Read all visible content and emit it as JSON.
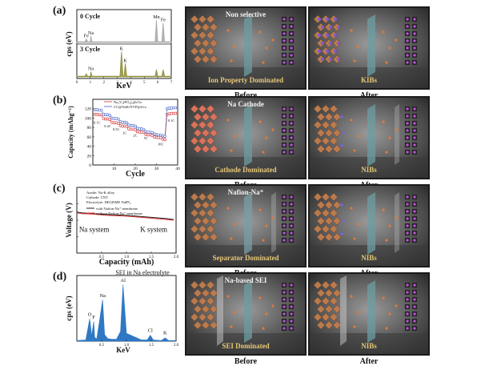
{
  "figure": {
    "rows": [
      {
        "label": "(a)",
        "chart_title": "",
        "panel_mid": {
          "title": "Non selective",
          "caption": "Ion Property Dominated",
          "state": "Before"
        },
        "panel_right": {
          "title": "",
          "caption": "KIBs",
          "state": "After"
        }
      },
      {
        "label": "(b)",
        "chart_title": "",
        "panel_mid": {
          "title": "Na Cathode",
          "caption": "Cathode Dominated",
          "state": "Before"
        },
        "panel_right": {
          "title": "",
          "caption": "NIBs",
          "state": "After"
        }
      },
      {
        "label": "(c)",
        "chart_title": "",
        "panel_mid": {
          "title": "Nafion-Na⁺",
          "caption": "Separator Dominated",
          "state": "Before"
        },
        "panel_right": {
          "title": "",
          "caption": "NIBs",
          "state": "After"
        }
      },
      {
        "label": "(d)",
        "chart_title": "SEI in Na electrolyte",
        "panel_mid": {
          "title": "Na-based SEI",
          "caption": "SEI Dominated",
          "state": "Before"
        },
        "panel_right": {
          "title": "",
          "caption": "NIBs",
          "state": "After"
        }
      }
    ]
  },
  "chart_data": [
    {
      "type": "line",
      "title": "",
      "xlabel": "KeV",
      "ylabel": "cps (eV)",
      "ylim": [
        0,
        2
      ],
      "series": [
        {
          "name": "0 Cycle",
          "color": "#a7a7a7",
          "x": [
            0,
            0.6,
            0.7,
            0.8,
            1.0,
            1.04,
            1.12,
            2.0,
            5.8,
            5.9,
            6.0,
            6.3,
            6.4,
            6.5,
            7.0
          ],
          "values": [
            0.05,
            0.05,
            0.25,
            0.05,
            0.05,
            0.45,
            0.05,
            0.05,
            0.05,
            1.6,
            0.05,
            0.05,
            1.4,
            0.05,
            0.05
          ]
        },
        {
          "name": "3 Cycle",
          "color": "#8f8f3a",
          "x": [
            0,
            0.6,
            0.7,
            0.8,
            1.0,
            1.04,
            1.12,
            2.0,
            3.2,
            3.31,
            3.42,
            3.5,
            3.59,
            3.7,
            5.8,
            5.9,
            6.0,
            6.3,
            6.4,
            6.5,
            7.0
          ],
          "values": [
            0.05,
            0.05,
            0.2,
            0.05,
            0.05,
            0.35,
            0.05,
            0.05,
            0.05,
            1.7,
            0.05,
            0.05,
            0.9,
            0.05,
            0.05,
            0.5,
            0.05,
            0.05,
            0.5,
            0.05,
            0.05
          ]
        }
      ],
      "annotations": [
        {
          "text": "Fe",
          "x": 0.7,
          "series": 0
        },
        {
          "text": "Na",
          "x": 1.04,
          "series": 0
        },
        {
          "text": "Mn",
          "x": 5.9,
          "series": 0
        },
        {
          "text": "Fe",
          "x": 6.4,
          "series": 0
        },
        {
          "text": "Na",
          "x": 1.04,
          "series": 1
        },
        {
          "text": "K",
          "x": 3.31,
          "series": 1
        },
        {
          "text": "K",
          "x": 3.59,
          "series": 1
        }
      ],
      "xticks": [
        0,
        1,
        2,
        3,
        4,
        5,
        6,
        7
      ],
      "xtick_labels": [
        "0",
        "1",
        "2",
        "3",
        "4",
        "5",
        "6",
        "7"
      ]
    },
    {
      "type": "scatter",
      "title": "",
      "xlabel": "Cycle",
      "ylabel": "Capacity (mAhg⁻¹)",
      "xlim": [
        0,
        40
      ],
      "ylim": [
        0,
        140
      ],
      "xticks": [
        10,
        20,
        30,
        40
      ],
      "yticks": [
        0,
        20,
        40,
        60,
        80,
        100,
        120
      ],
      "series": [
        {
          "name": "Na₃V₂(PO₄)₃@rGo",
          "color": "#d83030",
          "x": [
            1,
            2,
            3,
            4,
            5,
            6,
            7,
            8,
            9,
            10,
            11,
            12,
            13,
            14,
            15,
            16,
            17,
            18,
            19,
            20,
            21,
            22,
            23,
            24,
            25,
            26,
            27,
            28,
            29,
            30,
            31,
            32,
            33,
            34,
            35,
            36,
            37,
            38,
            39
          ],
          "values": [
            108,
            108,
            107,
            107,
            99,
            98,
            98,
            97,
            91,
            90,
            90,
            89,
            84,
            83,
            83,
            82,
            77,
            76,
            76,
            75,
            71,
            70,
            70,
            69,
            65,
            64,
            64,
            63,
            60,
            59,
            58,
            58,
            55,
            54,
            108,
            109,
            110,
            110,
            110
          ]
        },
        {
          "name": "CC@NaK/NVP@rGo",
          "color": "#4060c8",
          "x": [
            1,
            2,
            3,
            4,
            5,
            6,
            7,
            8,
            9,
            10,
            11,
            12,
            13,
            14,
            15,
            16,
            17,
            18,
            19,
            20,
            21,
            22,
            23,
            24,
            25,
            26,
            27,
            28,
            29,
            30,
            31,
            32,
            33,
            34,
            35,
            36,
            37,
            38,
            39
          ],
          "values": [
            118,
            118,
            117,
            117,
            108,
            107,
            107,
            106,
            100,
            99,
            99,
            98,
            92,
            91,
            91,
            90,
            85,
            84,
            84,
            83,
            78,
            77,
            77,
            76,
            71,
            70,
            70,
            69,
            66,
            65,
            64,
            64,
            62,
            61,
            120,
            121,
            121,
            122,
            122
          ]
        }
      ],
      "annotations": [
        {
          "text": "0.1C",
          "x": 2,
          "y": 88
        },
        {
          "text": "0.2C",
          "x": 7,
          "y": 80
        },
        {
          "text": "0.5C",
          "x": 11,
          "y": 73
        },
        {
          "text": "1C",
          "x": 15,
          "y": 66
        },
        {
          "text": "2C",
          "x": 20,
          "y": 61
        },
        {
          "text": "5C",
          "x": 25,
          "y": 55
        },
        {
          "text": "10C",
          "x": 32,
          "y": 42
        },
        {
          "text": "0.1C",
          "x": 37,
          "y": 92
        }
      ]
    },
    {
      "type": "line",
      "title": "",
      "xlabel": "Capacity (mAh)",
      "ylabel": "Voltage (V)",
      "xlim": [
        0,
        2.0
      ],
      "ylim": [
        0,
        4
      ],
      "xticks": [
        0.5,
        1.0,
        1.5,
        2.0
      ],
      "xtick_labels": [
        "0.5",
        "1.0",
        "1.5",
        "2.0"
      ],
      "yticks": [
        0,
        1,
        2,
        3,
        4
      ],
      "legend_text": [
        "Anode: Na-K alloy",
        "Cathode: CNT",
        "Electrolyte: DEGDME NaPF₆"
      ],
      "series": [
        {
          "name": "with Nafion-Na⁺ membrane",
          "color": "#222222",
          "x": [
            0,
            0.1,
            0.3,
            0.6,
            1.0,
            1.4,
            1.8,
            1.95
          ],
          "values": [
            2.5,
            2.45,
            2.4,
            2.35,
            2.3,
            2.2,
            2.1,
            2.05
          ]
        },
        {
          "name": "without Nafion-Na⁺ membrane",
          "color": "#d83030",
          "x": [
            0,
            0.1,
            0.3,
            0.6,
            1.0,
            1.4,
            1.8,
            1.95
          ],
          "values": [
            2.45,
            2.4,
            2.38,
            2.3,
            2.25,
            2.15,
            2.05,
            2.0
          ]
        }
      ],
      "annotations": [
        {
          "text": "Na system",
          "x": 0.35,
          "y": 1.3
        },
        {
          "text": "K system",
          "x": 1.55,
          "y": 1.3
        }
      ]
    },
    {
      "type": "area",
      "title": "SEI in Na electrolyte",
      "xlabel": "KeV",
      "ylabel": "cps (eV)",
      "xlim": [
        0,
        2.0
      ],
      "ylim": [
        0,
        10
      ],
      "xticks": [
        0.5,
        1.0,
        1.5,
        2.0
      ],
      "xtick_labels": [
        "0.5",
        "1.0",
        "1.5",
        "2.0"
      ],
      "series": [
        {
          "name": "SEI",
          "color": "#2f78c4",
          "x": [
            0,
            0.18,
            0.26,
            0.3,
            0.34,
            0.36,
            0.4,
            0.46,
            0.52,
            0.56,
            0.62,
            0.7,
            0.8,
            0.88,
            0.93,
            1.0,
            1.3,
            1.42,
            1.48,
            1.54,
            1.7,
            1.78,
            1.85,
            2.0
          ],
          "values": [
            0.1,
            0.2,
            3.4,
            0.8,
            3.0,
            0.6,
            0.3,
            3.2,
            6.3,
            1.0,
            0.4,
            0.3,
            0.3,
            1.5,
            8.6,
            1.2,
            0.2,
            0.2,
            0.9,
            0.2,
            0.1,
            0.5,
            0.1,
            0.1
          ]
        }
      ],
      "annotations": [
        {
          "text": "O",
          "x": 0.26,
          "y": 3.7
        },
        {
          "text": "F",
          "x": 0.34,
          "y": 3.3
        },
        {
          "text": "Na",
          "x": 0.52,
          "y": 6.6
        },
        {
          "text": "Al",
          "x": 0.93,
          "y": 8.9
        },
        {
          "text": "Cl",
          "x": 1.48,
          "y": 1.3
        },
        {
          "text": "K",
          "x": 1.78,
          "y": 0.9
        }
      ]
    }
  ]
}
